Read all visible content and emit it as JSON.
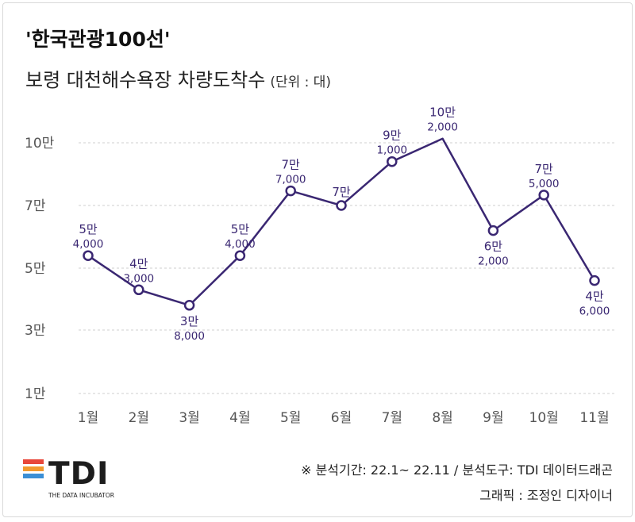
{
  "title": "'한국관광100선'",
  "subtitle": "보령 대천해수욕장 차량도착수",
  "unit": "(단위 : 대)",
  "chart_data": {
    "type": "line",
    "categories": [
      "1월",
      "2월",
      "3월",
      "4월",
      "5월",
      "6월",
      "7월",
      "8월",
      "9월",
      "10월",
      "11월"
    ],
    "values": [
      54000,
      43000,
      38000,
      54000,
      77000,
      70000,
      91000,
      102000,
      62000,
      75000,
      46000
    ],
    "point_labels": [
      [
        "5만",
        "4,000"
      ],
      [
        "4만",
        "3,000"
      ],
      [
        "3만",
        "8,000"
      ],
      [
        "5만",
        "4,000"
      ],
      [
        "7만",
        "7,000"
      ],
      [
        "7만",
        ""
      ],
      [
        "9만",
        "1,000"
      ],
      [
        "10만",
        "2,000"
      ],
      [
        "6만",
        "2,000"
      ],
      [
        "7만",
        "5,000"
      ],
      [
        "4만",
        "6,000"
      ]
    ],
    "label_position": [
      "above",
      "above",
      "below",
      "above",
      "above",
      "above",
      "above",
      "above",
      "below",
      "above",
      "below"
    ],
    "y_ticks": [
      10000,
      30000,
      50000,
      70000,
      100000
    ],
    "y_tick_labels": [
      "1만",
      "3만",
      "5만",
      "7만",
      "10만"
    ],
    "ylim": [
      10000,
      100000
    ],
    "grid": true,
    "colors": {
      "line": "#3a2772",
      "marker_fill": "#ffffff",
      "grid": "#cfcfcf",
      "tick_text": "#555555"
    }
  },
  "footer": {
    "source": "※ 분석기간: 22.1~ 22.11 / 분석도구: TDI 데이터드래곤",
    "credit": "그래픽 : 조정인 디자이너"
  },
  "logo": {
    "letters": "TDI",
    "tagline": "THE DATA INCUBATOR",
    "bar_colors": [
      "#e8483b",
      "#f29a2e",
      "#3b8fd6"
    ]
  }
}
